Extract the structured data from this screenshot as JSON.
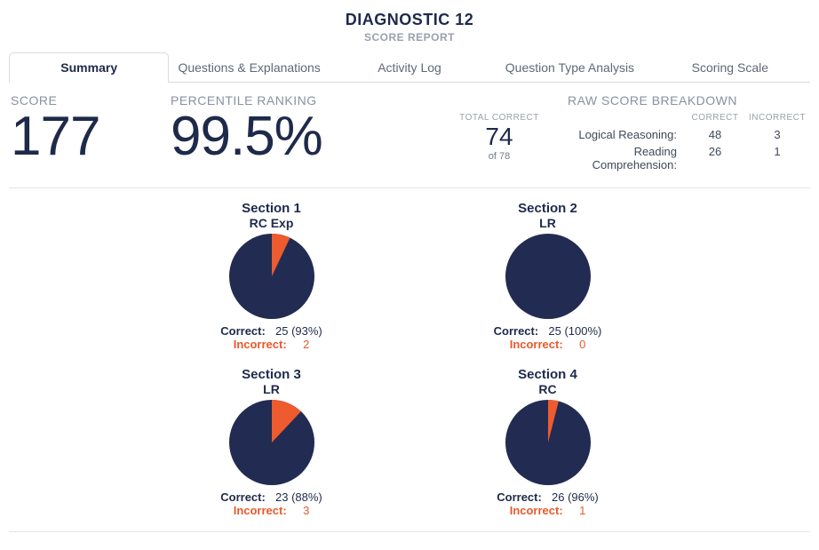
{
  "header": {
    "title": "DIAGNOSTIC 12",
    "subtitle": "SCORE REPORT"
  },
  "tabs": [
    {
      "label": "Summary",
      "active": true
    },
    {
      "label": "Questions & Explanations",
      "active": false
    },
    {
      "label": "Activity Log",
      "active": false
    },
    {
      "label": "Question Type Analysis",
      "active": false
    },
    {
      "label": "Scoring Scale",
      "active": false
    }
  ],
  "score": {
    "label": "SCORE",
    "value": "177"
  },
  "percentile": {
    "label": "PERCENTILE RANKING",
    "value": "99.5%"
  },
  "totalCorrect": {
    "label": "TOTAL CORRECT",
    "value": "74",
    "of": "of 78"
  },
  "rawTitle": "RAW SCORE BREAKDOWN",
  "rawHeaders": {
    "correct": "CORRECT",
    "incorrect": "INCORRECT"
  },
  "rawRows": [
    {
      "name": "Logical Reasoning:",
      "correct": "48",
      "incorrect": "3"
    },
    {
      "name": "Reading Comprehension:",
      "correct": "26",
      "incorrect": "1"
    }
  ],
  "colors": {
    "pieFill": "#222c52",
    "pieSlice": "#ee5b2e",
    "incorrectText": "#e85a2c"
  },
  "labels": {
    "correct": "Correct:",
    "incorrect": "Incorrect:"
  },
  "sections": [
    {
      "title": "Section 1",
      "sub": "RC Exp",
      "correct": "25",
      "pct": "(93%)",
      "incorrect": "2",
      "incorrectPct": 7
    },
    {
      "title": "Section 2",
      "sub": "LR",
      "correct": "25",
      "pct": "(100%)",
      "incorrect": "0",
      "incorrectPct": 0
    },
    {
      "title": "Section 3",
      "sub": "LR",
      "correct": "23",
      "pct": "(88%)",
      "incorrect": "3",
      "incorrectPct": 12
    },
    {
      "title": "Section 4",
      "sub": "RC",
      "correct": "26",
      "pct": "(96%)",
      "incorrect": "1",
      "incorrectPct": 4
    }
  ],
  "pieRadius": 48
}
